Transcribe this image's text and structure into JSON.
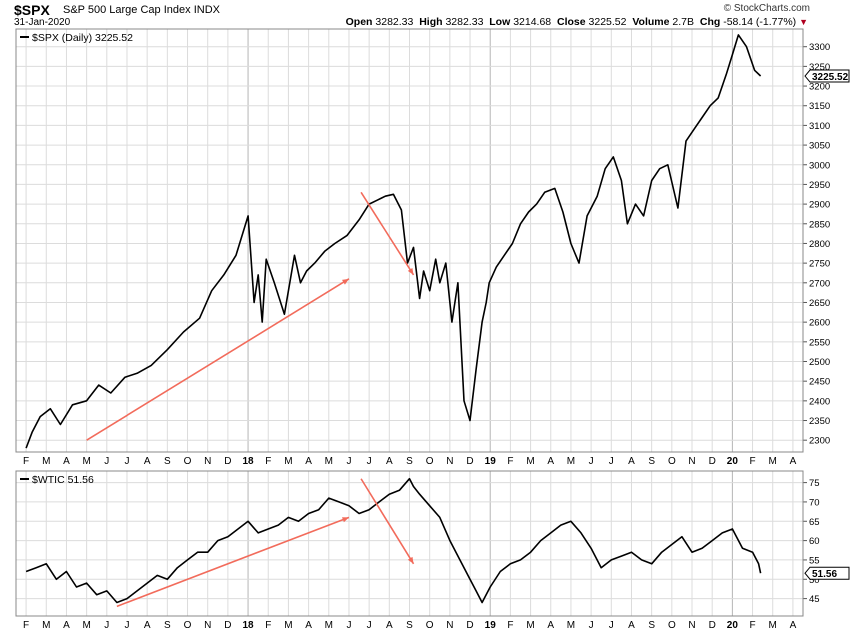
{
  "header": {
    "symbol": "$SPX",
    "description": "S&P 500 Large Cap Index",
    "exchange": "INDX",
    "date": "31-Jan-2020",
    "open_label": "Open",
    "open": "3282.33",
    "high_label": "High",
    "high": "3282.33",
    "low_label": "Low",
    "low": "3214.68",
    "close_label": "Close",
    "close": "3225.52",
    "volume_label": "Volume",
    "volume": "2.7B",
    "chg_label": "Chg",
    "chg": "-58.14 (-1.77%)",
    "watermark": "© StockCharts.com"
  },
  "colors": {
    "price": "#000000",
    "arrow": "#f26b5b",
    "grid": "#dcdcdc",
    "border": "#888888"
  },
  "time_axis": {
    "labels": [
      "F",
      "M",
      "A",
      "M",
      "J",
      "J",
      "A",
      "S",
      "O",
      "N",
      "D",
      "18",
      "F",
      "M",
      "A",
      "M",
      "J",
      "J",
      "A",
      "S",
      "O",
      "N",
      "D",
      "19",
      "F",
      "M",
      "A",
      "M",
      "J",
      "J",
      "A",
      "S",
      "O",
      "N",
      "D",
      "20",
      "F",
      "M",
      "A"
    ],
    "year_labels": [
      "18",
      "19",
      "20"
    ]
  },
  "chart_data": [
    {
      "type": "line",
      "legend": "$SPX (Daily) 3225.52",
      "last_value_label": "3225.52",
      "ylim": [
        2270,
        3345
      ],
      "yticks": [
        2300,
        2350,
        2400,
        2450,
        2500,
        2550,
        2600,
        2650,
        2700,
        2750,
        2800,
        2850,
        2900,
        2950,
        3000,
        3050,
        3100,
        3150,
        3200,
        3250,
        3300
      ],
      "grid": true,
      "x": [
        0,
        0.3,
        0.7,
        1.2,
        1.7,
        2.3,
        3,
        3.6,
        4.2,
        4.9,
        5.5,
        6.2,
        7,
        7.8,
        8.6,
        9.2,
        9.8,
        10.4,
        11,
        11.3,
        11.5,
        11.7,
        11.9,
        12.3,
        12.8,
        13.3,
        13.6,
        13.9,
        14.3,
        14.8,
        15.3,
        15.9,
        16.5,
        17,
        17.4,
        17.8,
        18.2,
        18.6,
        18.9,
        19.2,
        19.5,
        19.7,
        20,
        20.3,
        20.5,
        20.8,
        21.1,
        21.4,
        21.7,
        22,
        22.3,
        22.6,
        22.8,
        22.95,
        23.3,
        23.7,
        24.1,
        24.5,
        24.9,
        25.3,
        25.7,
        26.2,
        26.6,
        27,
        27.4,
        27.8,
        28.3,
        28.7,
        29.1,
        29.5,
        29.8,
        30.2,
        30.6,
        31,
        31.4,
        31.8,
        32.3,
        32.7,
        33.1,
        33.5,
        33.9,
        34.3,
        34.7,
        35,
        35.3,
        35.7,
        36.1,
        36.4
      ],
      "y": [
        2280,
        2320,
        2360,
        2380,
        2340,
        2390,
        2400,
        2440,
        2420,
        2460,
        2470,
        2490,
        2530,
        2575,
        2610,
        2680,
        2720,
        2770,
        2870,
        2650,
        2720,
        2600,
        2760,
        2700,
        2620,
        2770,
        2700,
        2730,
        2750,
        2780,
        2800,
        2820,
        2860,
        2900,
        2910,
        2920,
        2925,
        2885,
        2750,
        2790,
        2660,
        2730,
        2680,
        2760,
        2700,
        2750,
        2600,
        2700,
        2400,
        2350,
        2480,
        2600,
        2650,
        2700,
        2740,
        2770,
        2800,
        2850,
        2880,
        2900,
        2930,
        2940,
        2880,
        2800,
        2750,
        2870,
        2920,
        2990,
        3020,
        2960,
        2850,
        2900,
        2870,
        2960,
        2990,
        3000,
        2890,
        3060,
        3090,
        3120,
        3150,
        3170,
        3230,
        3280,
        3330,
        3300,
        3240,
        3225.52
      ]
    },
    {
      "type": "line",
      "legend": "$WTIC 51.56",
      "last_value_label": "51.56",
      "ylim": [
        40.5,
        78
      ],
      "yticks": [
        45,
        50,
        55,
        60,
        65,
        70,
        75
      ],
      "grid": true,
      "x": [
        0,
        0.5,
        1,
        1.5,
        2,
        2.5,
        3,
        3.5,
        4,
        4.5,
        5,
        5.5,
        6,
        6.5,
        7,
        7.5,
        8,
        8.5,
        9,
        9.5,
        10,
        10.5,
        11,
        11.5,
        12,
        12.5,
        13,
        13.5,
        14,
        14.5,
        15,
        15.5,
        16,
        16.5,
        17,
        17.5,
        18,
        18.5,
        19,
        19.2,
        19.5,
        20,
        20.5,
        21,
        21.5,
        22,
        22.3,
        22.6,
        23,
        23.5,
        24,
        24.5,
        25,
        25.5,
        26,
        26.5,
        27,
        27.5,
        28,
        28.5,
        29,
        29.5,
        30,
        30.5,
        31,
        31.5,
        32,
        32.5,
        33,
        33.5,
        34,
        34.5,
        35,
        35.5,
        36,
        36.3,
        36.4
      ],
      "y": [
        52,
        53,
        54,
        50,
        52,
        48,
        49,
        46,
        47,
        44,
        45,
        47,
        49,
        51,
        50,
        53,
        55,
        57,
        57,
        60,
        61,
        63,
        65,
        62,
        63,
        64,
        66,
        65,
        67,
        68,
        71,
        70,
        69,
        67,
        68,
        70,
        72,
        73,
        76,
        74,
        72,
        69,
        66,
        60,
        55,
        50,
        47,
        44,
        48,
        52,
        54,
        55,
        57,
        60,
        62,
        64,
        65,
        62,
        58,
        53,
        55,
        56,
        57,
        55,
        54,
        57,
        59,
        61,
        57,
        58,
        60,
        62,
        63,
        58,
        57,
        54,
        51.56
      ]
    }
  ]
}
